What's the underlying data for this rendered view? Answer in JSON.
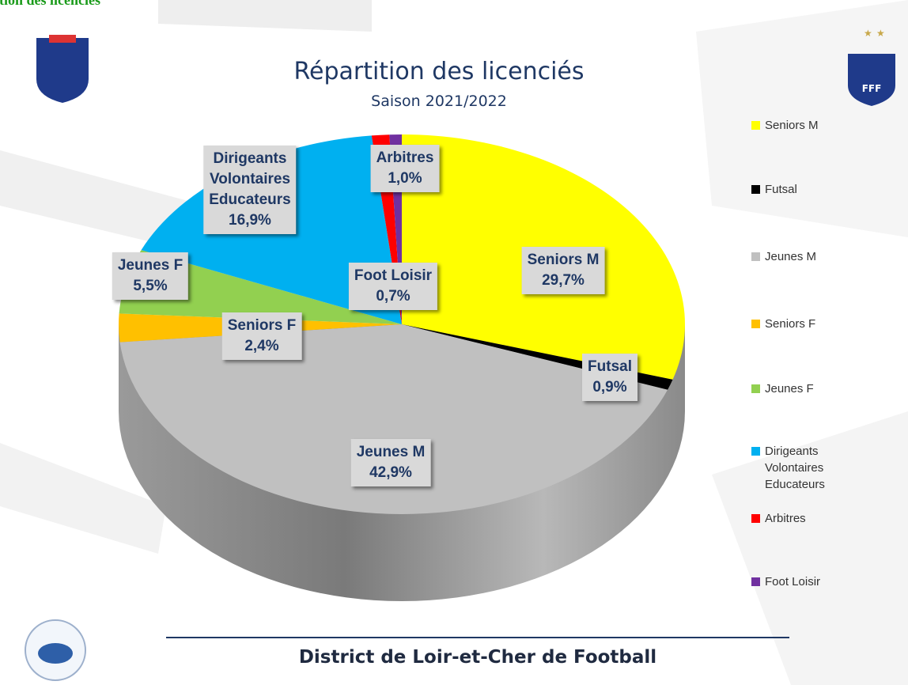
{
  "top_banner": "Répartition des licenciés",
  "logo_text": "FFF",
  "footer": "District de Loir-et-Cher de Football",
  "chart_data": {
    "type": "pie",
    "title": "Répartition des licenciés",
    "subtitle": "Saison 2021/2022",
    "categories": [
      "Seniors M",
      "Futsal",
      "Jeunes M",
      "Seniors F",
      "Jeunes F",
      "Dirigeants\nVolontaires\nEducateurs",
      "Arbitres",
      "Foot Loisir"
    ],
    "values": [
      29.7,
      0.9,
      42.9,
      2.4,
      5.5,
      16.9,
      1.0,
      0.7
    ],
    "value_labels": [
      "29,7%",
      "0,9%",
      "42,9%",
      "2,4%",
      "5,5%",
      "16,9%",
      "1,0%",
      "0,7%"
    ],
    "colors": [
      "#ffff00",
      "#000000",
      "#c0c0c0",
      "#ffc000",
      "#92d050",
      "#00b0f0",
      "#ff0000",
      "#7030a0"
    ],
    "legend": "right"
  }
}
